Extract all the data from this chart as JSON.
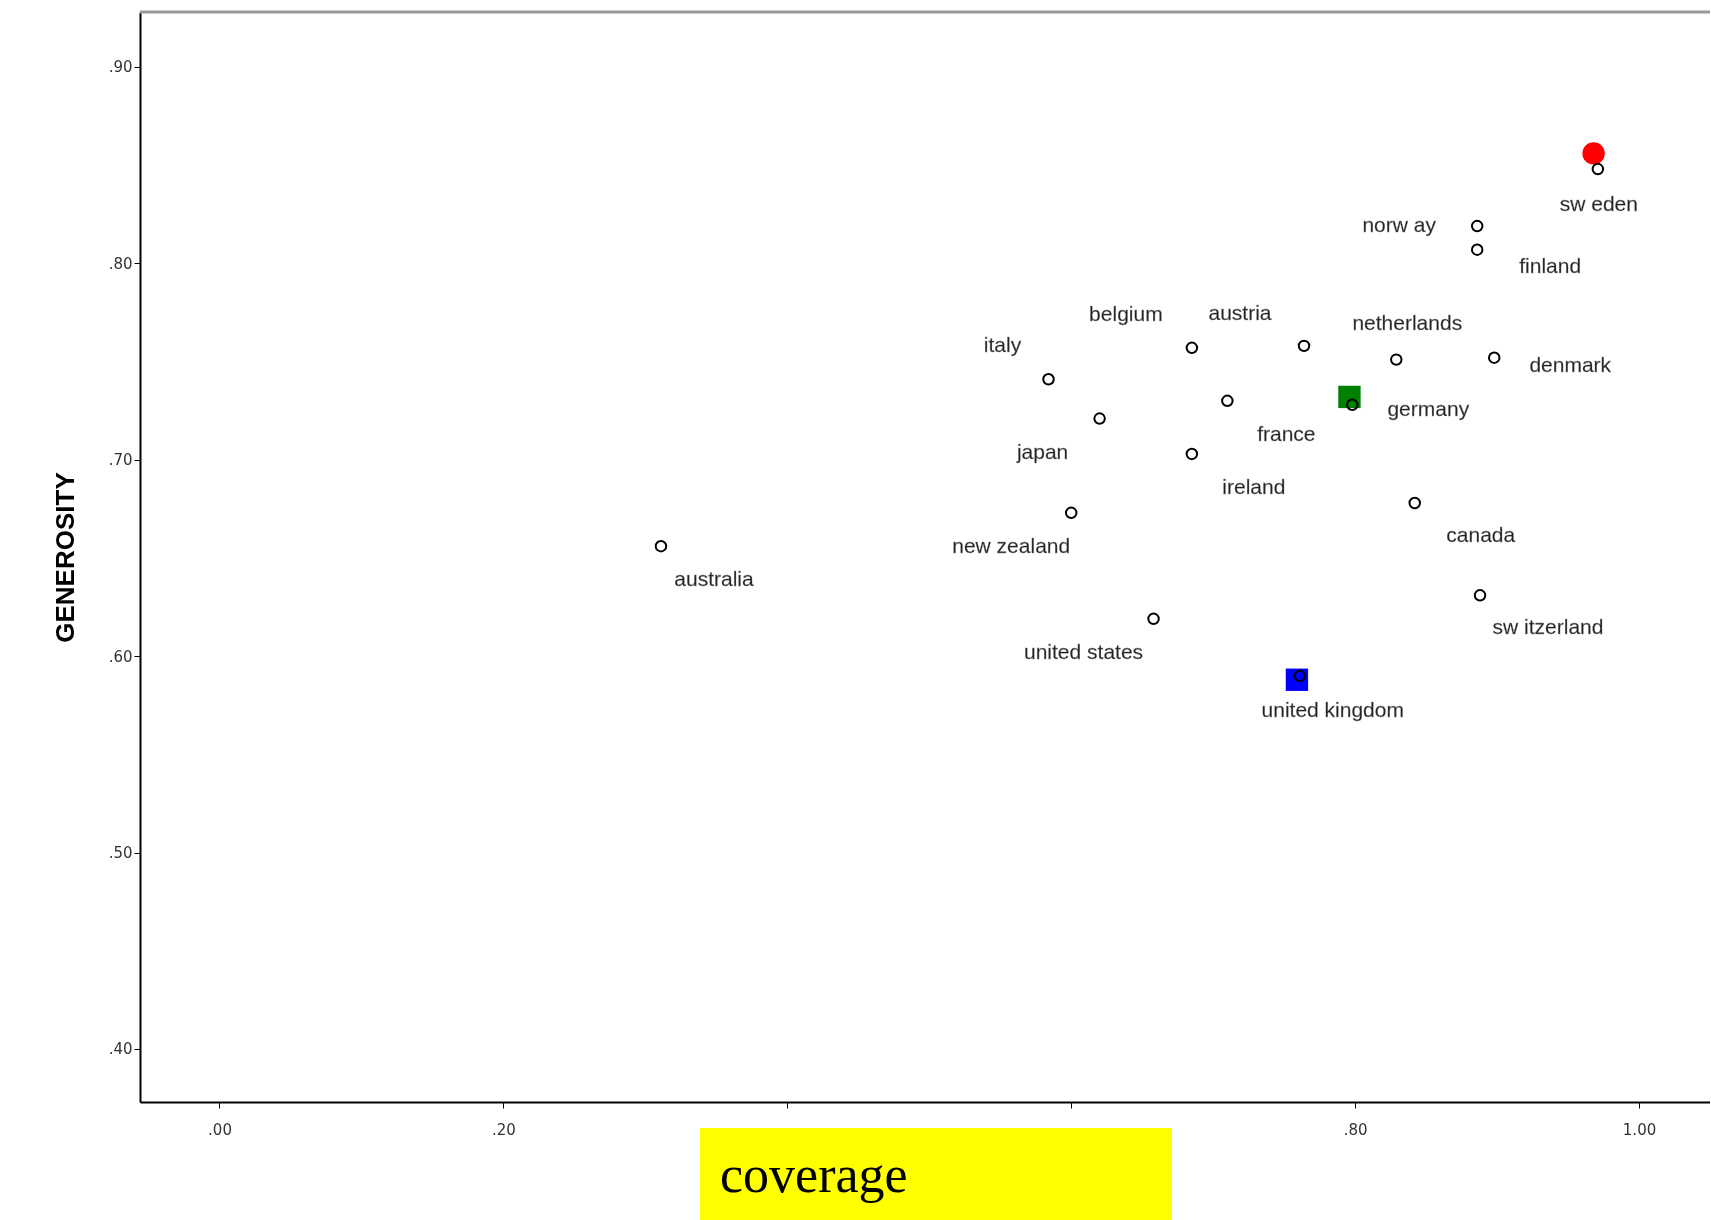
{
  "chart_data": {
    "type": "scatter",
    "xlabel": "coverage",
    "ylabel": "GENEROSITY",
    "xlim": [
      -0.056,
      1.05
    ],
    "ylim": [
      0.373,
      0.928
    ],
    "xticks": [
      {
        "value": 0,
        "label": ".00"
      },
      {
        "value": 0.2,
        "label": ".20"
      },
      {
        "value": 0.4,
        "label": null
      },
      {
        "value": 0.6,
        "label": null
      },
      {
        "value": 0.8,
        "label": ".80"
      },
      {
        "value": 1,
        "label": "1.00"
      }
    ],
    "yticks": [
      {
        "value": 0.4,
        "label": ".40"
      },
      {
        "value": 0.5,
        "label": ".50"
      },
      {
        "value": 0.6,
        "label": ".60"
      },
      {
        "value": 0.7,
        "label": ".70"
      },
      {
        "value": 0.8,
        "label": ".80"
      },
      {
        "value": 0.9,
        "label": ".90"
      }
    ],
    "grid": false,
    "series": [
      {
        "color": "#000000",
        "marker": "circle",
        "x": [
          0.971,
          0.886,
          0.886,
          0.685,
          0.764,
          0.829,
          0.898,
          0.584,
          0.62,
          0.71,
          0.798,
          0.685,
          0.842,
          0.6,
          0.311,
          0.888,
          0.658,
          0.761
        ],
        "values": [
          0.848,
          0.819,
          0.807,
          0.757,
          0.758,
          0.751,
          0.752,
          0.741,
          0.721,
          0.73,
          0.728,
          0.703,
          0.678,
          0.673,
          0.656,
          0.631,
          0.619,
          0.59
        ]
      },
      {
        "color": "#ff0000",
        "marker": "circle",
        "x": [
          0.968
        ],
        "values": [
          0.856
        ]
      },
      {
        "color": "#008000",
        "marker": "square",
        "x": [
          0.796
        ],
        "values": [
          0.732
        ]
      },
      {
        "color": "#0000ff",
        "marker": "square",
        "x": [
          0.759
        ],
        "values": [
          0.588
        ]
      }
    ],
    "annotations": [
      {
        "text": "sw eden",
        "x": 0.971,
        "y": 0.848
      },
      {
        "text": "norw ay",
        "x": 0.886,
        "y": 0.819
      },
      {
        "text": "finland",
        "x": 0.886,
        "y": 0.807
      },
      {
        "text": "belgium",
        "x": 0.685,
        "y": 0.757
      },
      {
        "text": "austria",
        "x": 0.764,
        "y": 0.758
      },
      {
        "text": "netherlands",
        "x": 0.829,
        "y": 0.751
      },
      {
        "text": "denmark",
        "x": 0.898,
        "y": 0.752
      },
      {
        "text": "italy",
        "x": 0.584,
        "y": 0.741
      },
      {
        "text": "japan",
        "x": 0.62,
        "y": 0.721
      },
      {
        "text": "france",
        "x": 0.71,
        "y": 0.73
      },
      {
        "text": "germany",
        "x": 0.798,
        "y": 0.728
      },
      {
        "text": "ireland",
        "x": 0.685,
        "y": 0.703
      },
      {
        "text": "canada",
        "x": 0.842,
        "y": 0.678
      },
      {
        "text": "new zealand",
        "x": 0.6,
        "y": 0.673
      },
      {
        "text": "australia",
        "x": 0.311,
        "y": 0.656
      },
      {
        "text": "sw itzerland",
        "x": 0.888,
        "y": 0.631
      },
      {
        "text": "united states",
        "x": 0.658,
        "y": 0.619
      },
      {
        "text": "united kingdom",
        "x": 0.761,
        "y": 0.59
      }
    ]
  }
}
